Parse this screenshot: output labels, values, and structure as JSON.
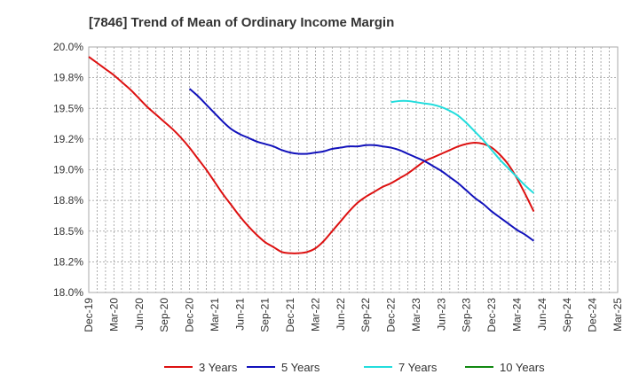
{
  "chart_data": {
    "type": "line",
    "title": "[7846]  Trend of Mean of Ordinary Income Margin",
    "xlabel": "",
    "ylabel": "",
    "x_ticks": [
      "Dec-19",
      "Mar-20",
      "Jun-20",
      "Sep-20",
      "Dec-20",
      "Mar-21",
      "Jun-21",
      "Sep-21",
      "Dec-21",
      "Mar-22",
      "Jun-22",
      "Sep-22",
      "Dec-22",
      "Mar-23",
      "Jun-23",
      "Sep-23",
      "Dec-23",
      "Mar-24",
      "Jun-24",
      "Sep-24",
      "Dec-24",
      "Mar-25"
    ],
    "y_ticks": [
      "18.0%",
      "18.2%",
      "18.5%",
      "18.8%",
      "19.0%",
      "19.2%",
      "19.5%",
      "19.8%",
      "20.0%"
    ],
    "ylim": [
      18.0,
      20.0
    ],
    "grid": true,
    "legend_position": "bottom",
    "series": [
      {
        "name": "3 Years",
        "color": "#dd1111",
        "start_index": 0,
        "values": [
          19.92,
          19.87,
          19.82,
          19.77,
          19.71,
          19.65,
          19.58,
          19.51,
          19.45,
          19.39,
          19.33,
          19.26,
          19.18,
          19.09,
          19.0,
          18.9,
          18.8,
          18.71,
          18.62,
          18.54,
          18.47,
          18.41,
          18.37,
          18.33,
          18.32,
          18.32,
          18.33,
          18.36,
          18.42,
          18.5,
          18.58,
          18.66,
          18.73,
          18.78,
          18.82,
          18.86,
          18.89,
          18.93,
          18.97,
          19.02,
          19.07,
          19.1,
          19.13,
          19.16,
          19.19,
          19.21,
          19.22,
          19.21,
          19.18,
          19.12,
          19.04,
          18.93,
          18.8,
          18.66
        ]
      },
      {
        "name": "5 Years",
        "color": "#1111bb",
        "start_index": 12,
        "values": [
          19.66,
          19.6,
          19.53,
          19.46,
          19.39,
          19.33,
          19.29,
          19.26,
          19.23,
          19.21,
          19.19,
          19.16,
          19.14,
          19.13,
          19.13,
          19.14,
          19.15,
          19.17,
          19.18,
          19.19,
          19.19,
          19.2,
          19.2,
          19.19,
          19.18,
          19.16,
          19.13,
          19.1,
          19.07,
          19.03,
          18.99,
          18.94,
          18.89,
          18.83,
          18.77,
          18.72,
          18.66,
          18.61,
          18.56,
          18.51,
          18.47,
          18.42
        ]
      },
      {
        "name": "7 Years",
        "color": "#22dddd",
        "start_index": 36,
        "values": [
          19.55,
          19.56,
          19.56,
          19.55,
          19.54,
          19.53,
          19.51,
          19.48,
          19.44,
          19.38,
          19.31,
          19.24,
          19.16,
          19.08,
          19.01,
          18.94,
          18.87,
          18.81
        ]
      },
      {
        "name": "10 Years",
        "color": "#118811",
        "start_index": 0,
        "values": []
      }
    ]
  }
}
